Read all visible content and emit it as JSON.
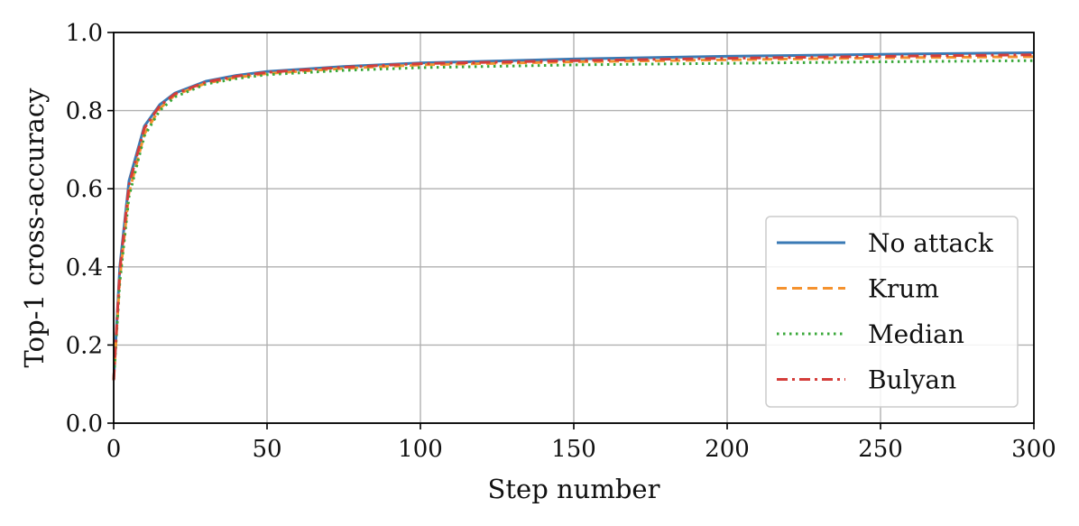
{
  "chart_data": {
    "type": "line",
    "title": "",
    "xlabel": "Step number",
    "ylabel": "Top-1 cross-accuracy",
    "xlim": [
      0,
      300
    ],
    "ylim": [
      0.0,
      1.0
    ],
    "xticks": [
      "0",
      "50",
      "100",
      "150",
      "200",
      "250",
      "300"
    ],
    "yticks": [
      "0.0",
      "0.2",
      "0.4",
      "0.6",
      "0.8",
      "1.0"
    ],
    "grid": true,
    "legend_position": "lower-right",
    "x": [
      0,
      2,
      5,
      10,
      15,
      20,
      30,
      40,
      50,
      75,
      100,
      150,
      200,
      250,
      300
    ],
    "series": [
      {
        "name": "No attack",
        "color": "#3a7ab5",
        "style": "solid",
        "values": [
          0.11,
          0.4,
          0.62,
          0.76,
          0.815,
          0.845,
          0.875,
          0.89,
          0.9,
          0.913,
          0.922,
          0.932,
          0.939,
          0.944,
          0.948
        ]
      },
      {
        "name": "Krum",
        "color": "#f5922e",
        "style": "dashed",
        "values": [
          0.11,
          0.37,
          0.59,
          0.74,
          0.805,
          0.84,
          0.87,
          0.885,
          0.895,
          0.908,
          0.917,
          0.925,
          0.93,
          0.935,
          0.938
        ]
      },
      {
        "name": "Median",
        "color": "#3aa83a",
        "style": "dotted",
        "values": [
          0.11,
          0.36,
          0.58,
          0.735,
          0.8,
          0.835,
          0.868,
          0.882,
          0.892,
          0.903,
          0.91,
          0.917,
          0.921,
          0.925,
          0.928
        ]
      },
      {
        "name": "Bulyan",
        "color": "#d43d3a",
        "style": "dashdot",
        "values": [
          0.11,
          0.39,
          0.61,
          0.755,
          0.812,
          0.843,
          0.873,
          0.888,
          0.898,
          0.911,
          0.92,
          0.928,
          0.934,
          0.939,
          0.943
        ]
      }
    ]
  }
}
